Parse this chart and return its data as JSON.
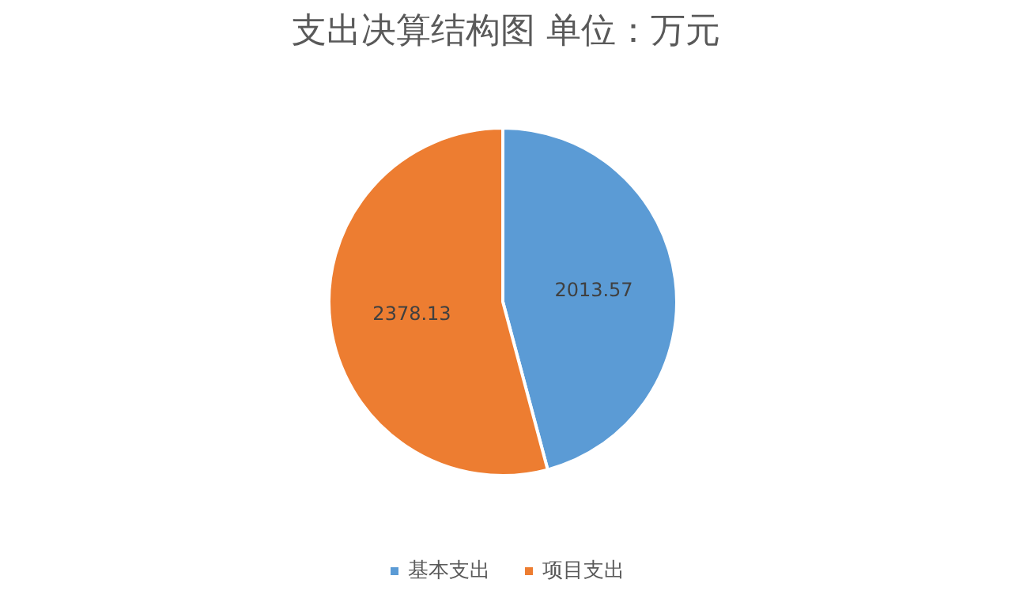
{
  "chart_data": {
    "type": "pie",
    "title": "支出决算结构图 单位：万元",
    "categories": [
      "基本支出",
      "项目支出"
    ],
    "values": [
      2013.57,
      2378.13
    ],
    "colors": [
      "#5b9bd5",
      "#ed7d31"
    ],
    "data_labels": true,
    "legend": "bottom"
  }
}
